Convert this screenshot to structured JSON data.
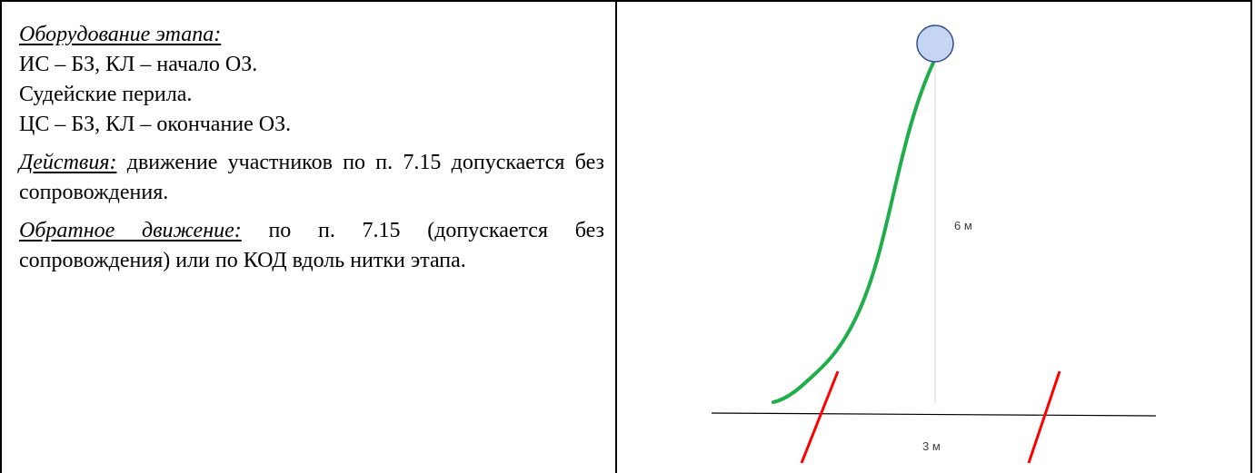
{
  "left": {
    "equipment_label": "Оборудование этапа:",
    "equipment_lines": [
      "ИС – БЗ, КЛ – начало ОЗ.",
      "Судейские перила.",
      "ЦС – БЗ, КЛ – окончание ОЗ."
    ],
    "actions_label": "Действия:",
    "actions_text": " движение участников по п. 7.15 допускается без сопровождения.",
    "return_label": "Обратное движение:",
    "return_text": " по п. 7.15 (допускается без сопровождения) или по КОД вдоль нитки этапа."
  },
  "diagram": {
    "height_label": "6 м",
    "width_label": "3 м",
    "colors": {
      "rope": "#1fae4a",
      "boundary": "#ff0000",
      "anchor_fill": "#c6d6f2",
      "anchor_stroke": "#2f4f8f",
      "guide": "#d9d9d9",
      "ground": "#000000"
    }
  }
}
